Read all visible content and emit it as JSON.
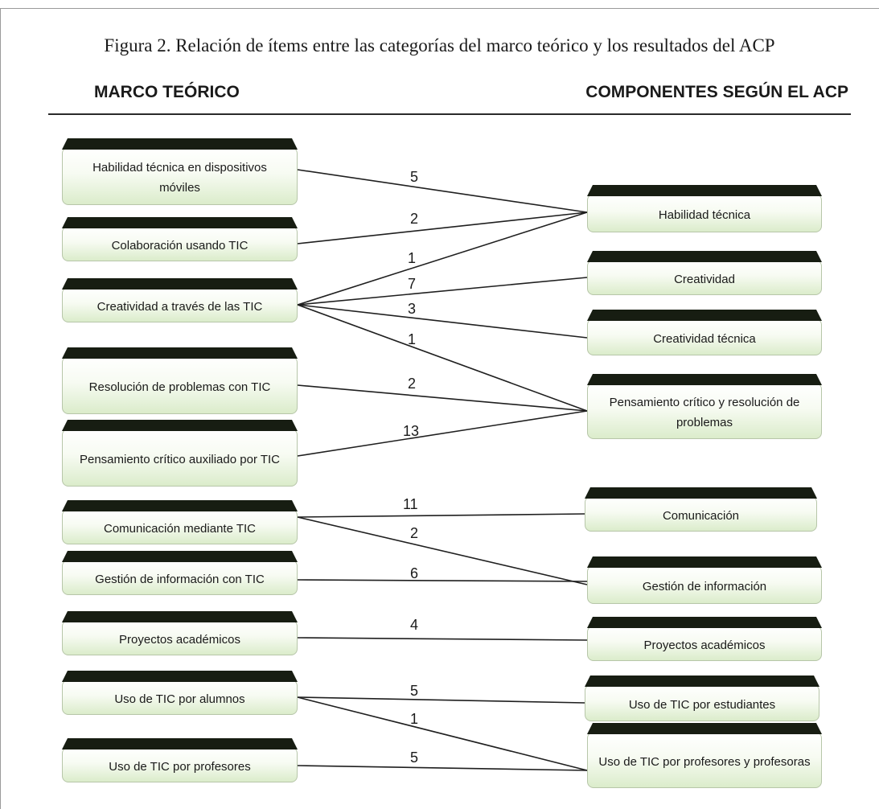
{
  "caption": "Figura 2. Relación de ítems entre las categorías del marco teórico y los resultados del ACP",
  "left_heading": "MARCO TEÓRICO",
  "right_heading": "COMPONENTES SEGÚN EL ACP",
  "left_nodes": [
    {
      "id": "L1",
      "label": "Habilidad técnica en dispositivos móviles"
    },
    {
      "id": "L2",
      "label": "Colaboración usando TIC"
    },
    {
      "id": "L3",
      "label": "Creatividad a través de las TIC"
    },
    {
      "id": "L4",
      "label": "Resolución de problemas con TIC"
    },
    {
      "id": "L5",
      "label": "Pensamiento crítico auxiliado por TIC"
    },
    {
      "id": "L6",
      "label": "Comunicación mediante TIC"
    },
    {
      "id": "L7",
      "label": "Gestión de información con TIC"
    },
    {
      "id": "L8",
      "label": "Proyectos académicos"
    },
    {
      "id": "L9",
      "label": "Uso de TIC por alumnos"
    },
    {
      "id": "L10",
      "label": "Uso de TIC por profesores"
    }
  ],
  "right_nodes": [
    {
      "id": "R1",
      "label": "Habilidad técnica"
    },
    {
      "id": "R2",
      "label": "Creatividad"
    },
    {
      "id": "R3",
      "label": "Creatividad técnica"
    },
    {
      "id": "R4",
      "label": "Pensamiento crítico y resolución de problemas"
    },
    {
      "id": "R5",
      "label": "Comunicación"
    },
    {
      "id": "R6",
      "label": "Gestión de información"
    },
    {
      "id": "R7",
      "label": "Proyectos académicos"
    },
    {
      "id": "R8",
      "label": "Uso de TIC por estudiantes"
    },
    {
      "id": "R9",
      "label": "Uso de TIC por profesores y profesoras"
    }
  ],
  "links": [
    {
      "from": "L1",
      "to": "R1",
      "items": "5"
    },
    {
      "from": "L2",
      "to": "R1",
      "items": "2"
    },
    {
      "from": "L3",
      "to": "R1",
      "items": "1"
    },
    {
      "from": "L3",
      "to": "R2",
      "items": "7"
    },
    {
      "from": "L3",
      "to": "R3",
      "items": "3"
    },
    {
      "from": "L3",
      "to": "R4",
      "items": "1"
    },
    {
      "from": "L4",
      "to": "R4",
      "items": "2"
    },
    {
      "from": "L5",
      "to": "R4",
      "items": "13"
    },
    {
      "from": "L6",
      "to": "R5",
      "items": "11"
    },
    {
      "from": "L6",
      "to": "R6",
      "items": "2"
    },
    {
      "from": "L7",
      "to": "R6",
      "items": "6"
    },
    {
      "from": "L8",
      "to": "R7",
      "items": "4"
    },
    {
      "from": "L9",
      "to": "R8",
      "items": "5"
    },
    {
      "from": "L9",
      "to": "R9",
      "items": "1"
    },
    {
      "from": "L10",
      "to": "R9",
      "items": "5"
    }
  ]
}
